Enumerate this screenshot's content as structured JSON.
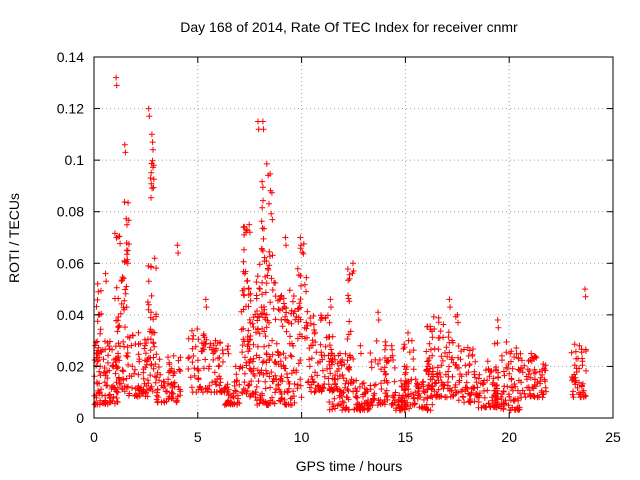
{
  "chart_data": {
    "type": "scatter",
    "title": "Day 168 of 2014, Rate Of TEC Index for receiver cnmr",
    "xlabel": "GPS time / hours",
    "ylabel": "ROTI / TECUs",
    "xlim": [
      0,
      25
    ],
    "ylim": [
      0,
      0.14
    ],
    "xticks": [
      0,
      5,
      10,
      15,
      20,
      25
    ],
    "xtick_labels": [
      "0",
      "5",
      "10",
      "15",
      "20",
      "25"
    ],
    "yticks": [
      0,
      0.02,
      0.04,
      0.06,
      0.08,
      0.1,
      0.12,
      0.14
    ],
    "ytick_labels": [
      "0",
      "0.02",
      "0.04",
      "0.06",
      "0.08",
      "0.1",
      "0.12",
      "0.14"
    ],
    "grid": true,
    "marker": "plus",
    "marker_color": "#ff0000",
    "clusters": [
      {
        "t0": 0.0,
        "t1": 1.2,
        "lo": 0.005,
        "hi": 0.03,
        "n": 90,
        "spike": 0.056
      },
      {
        "t0": 0.1,
        "t1": 0.4,
        "lo": 0.02,
        "hi": 0.05,
        "n": 18,
        "spike": 0.052
      },
      {
        "t0": 1.0,
        "t1": 1.6,
        "lo": 0.01,
        "hi": 0.075,
        "n": 60,
        "spike": 0.132
      },
      {
        "t0": 1.4,
        "t1": 1.7,
        "lo": 0.06,
        "hi": 0.085,
        "n": 14,
        "spike": 0.106
      },
      {
        "t0": 1.6,
        "t1": 2.6,
        "lo": 0.008,
        "hi": 0.035,
        "n": 70,
        "spike": 0.045
      },
      {
        "t0": 2.6,
        "t1": 3.0,
        "lo": 0.01,
        "hi": 0.065,
        "n": 40,
        "spike": 0.12
      },
      {
        "t0": 2.7,
        "t1": 2.9,
        "lo": 0.085,
        "hi": 0.108,
        "n": 12,
        "spike": 0.11
      },
      {
        "t0": 3.0,
        "t1": 4.2,
        "lo": 0.006,
        "hi": 0.025,
        "n": 70,
        "spike": 0.067
      },
      {
        "t0": 4.5,
        "t1": 5.5,
        "lo": 0.01,
        "hi": 0.035,
        "n": 50,
        "spike": 0.046
      },
      {
        "t0": 5.5,
        "t1": 6.5,
        "lo": 0.01,
        "hi": 0.03,
        "n": 50,
        "spike": 0.03
      },
      {
        "t0": 6.3,
        "t1": 7.0,
        "lo": 0.005,
        "hi": 0.015,
        "n": 40,
        "spike": 0.02
      },
      {
        "t0": 7.0,
        "t1": 7.8,
        "lo": 0.008,
        "hi": 0.05,
        "n": 70,
        "spike": 0.075
      },
      {
        "t0": 7.2,
        "t1": 7.6,
        "lo": 0.05,
        "hi": 0.075,
        "n": 14,
        "spike": 0.074
      },
      {
        "t0": 7.8,
        "t1": 8.8,
        "lo": 0.005,
        "hi": 0.06,
        "n": 110,
        "spike": 0.115
      },
      {
        "t0": 8.0,
        "t1": 8.6,
        "lo": 0.06,
        "hi": 0.1,
        "n": 25,
        "spike": 0.115
      },
      {
        "t0": 8.8,
        "t1": 10.0,
        "lo": 0.005,
        "hi": 0.05,
        "n": 100,
        "spike": 0.07
      },
      {
        "t0": 9.8,
        "t1": 10.3,
        "lo": 0.03,
        "hi": 0.07,
        "n": 25,
        "spike": 0.07
      },
      {
        "t0": 10.3,
        "t1": 11.5,
        "lo": 0.01,
        "hi": 0.04,
        "n": 80,
        "spike": 0.046
      },
      {
        "t0": 11.3,
        "t1": 12.3,
        "lo": 0.003,
        "hi": 0.025,
        "n": 70,
        "spike": 0.025
      },
      {
        "t0": 12.2,
        "t1": 12.5,
        "lo": 0.01,
        "hi": 0.06,
        "n": 25,
        "spike": 0.06
      },
      {
        "t0": 12.5,
        "t1": 13.3,
        "lo": 0.003,
        "hi": 0.015,
        "n": 50,
        "spike": 0.028
      },
      {
        "t0": 13.3,
        "t1": 14.5,
        "lo": 0.005,
        "hi": 0.03,
        "n": 70,
        "spike": 0.041
      },
      {
        "t0": 14.5,
        "t1": 15.2,
        "lo": 0.003,
        "hi": 0.015,
        "n": 40,
        "spike": 0.02
      },
      {
        "t0": 14.8,
        "t1": 15.5,
        "lo": 0.005,
        "hi": 0.03,
        "n": 40,
        "spike": 0.033
      },
      {
        "t0": 15.5,
        "t1": 16.3,
        "lo": 0.003,
        "hi": 0.015,
        "n": 40,
        "spike": 0.02
      },
      {
        "t0": 16.0,
        "t1": 17.5,
        "lo": 0.008,
        "hi": 0.04,
        "n": 110,
        "spike": 0.046
      },
      {
        "t0": 17.5,
        "t1": 18.5,
        "lo": 0.006,
        "hi": 0.028,
        "n": 60,
        "spike": 0.04
      },
      {
        "t0": 18.5,
        "t1": 19.5,
        "lo": 0.004,
        "hi": 0.02,
        "n": 60,
        "spike": 0.022
      },
      {
        "t0": 19.3,
        "t1": 20.5,
        "lo": 0.003,
        "hi": 0.03,
        "n": 80,
        "spike": 0.038
      },
      {
        "t0": 20.5,
        "t1": 21.8,
        "lo": 0.008,
        "hi": 0.025,
        "n": 70,
        "spike": 0.025
      },
      {
        "t0": 23.0,
        "t1": 23.7,
        "lo": 0.008,
        "hi": 0.03,
        "n": 45,
        "spike": 0.05
      }
    ]
  }
}
